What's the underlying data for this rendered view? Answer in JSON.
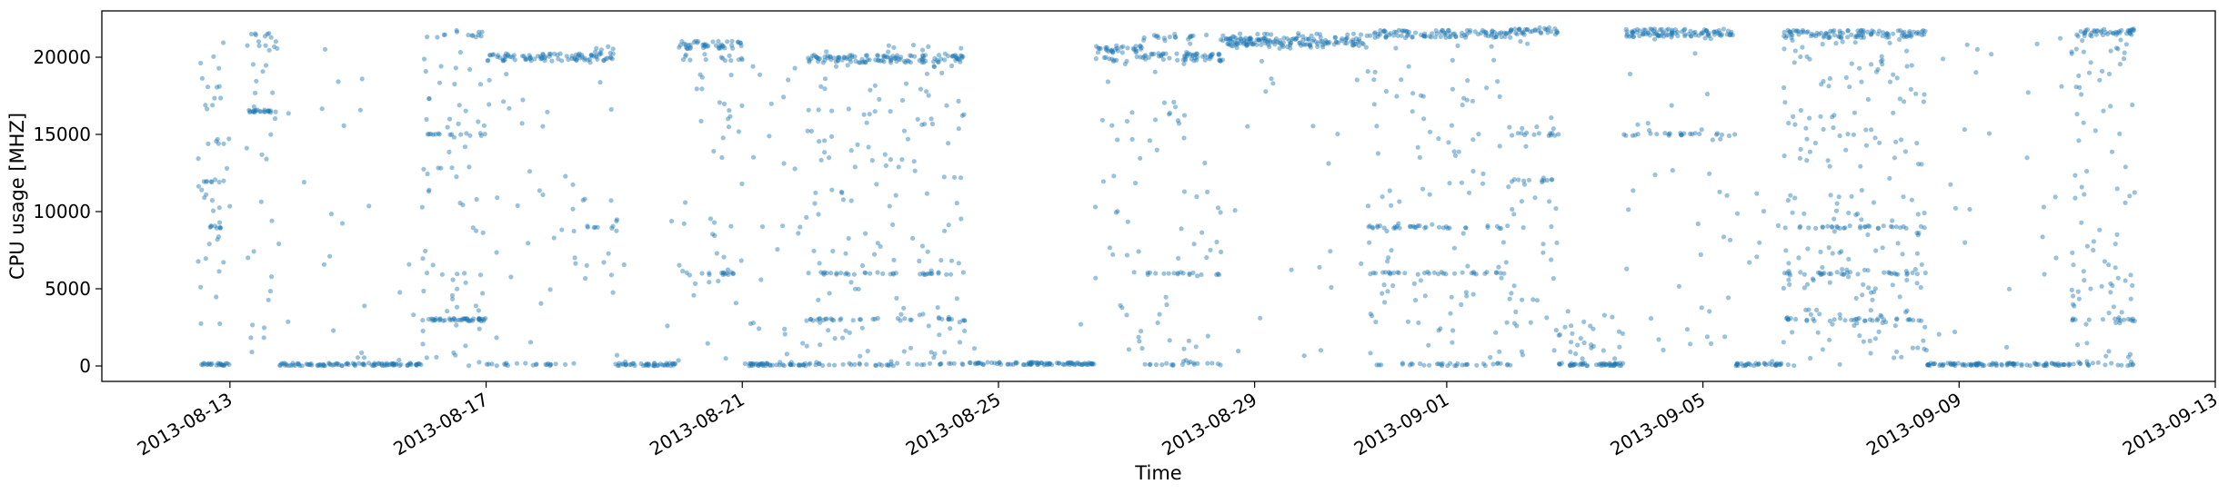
{
  "chart_data": {
    "type": "scatter",
    "xlabel": "Time",
    "ylabel": "CPU usage [MHZ]",
    "xlim": [
      "2013-08-11",
      "2013-09-13"
    ],
    "ylim": [
      -1000,
      23000
    ],
    "x_ticks": [
      "2013-08-13",
      "2013-08-17",
      "2013-08-21",
      "2013-08-25",
      "2013-08-29",
      "2013-09-01",
      "2013-09-05",
      "2013-09-09",
      "2013-09-13"
    ],
    "y_ticks": [
      0,
      5000,
      10000,
      15000,
      20000
    ],
    "y_tick_labels": [
      "0",
      "5000",
      "10000",
      "15000",
      "20000"
    ],
    "grid": false,
    "legend": false,
    "marker_color": "#1f77b4",
    "marker_alpha": 0.45,
    "segments": [
      {
        "start": "2013-08-12 12:00",
        "end": "2013-08-13 00:00",
        "levels": [
          100,
          9000,
          12000
        ],
        "scatter": 45,
        "scatter_max": 21000
      },
      {
        "start": "2013-08-13 06:00",
        "end": "2013-08-13 18:00",
        "levels": [
          16500,
          20800,
          21300
        ],
        "scatter": 25,
        "scatter_max": 21500
      },
      {
        "start": "2013-08-13 18:00",
        "end": "2013-08-16 00:00",
        "levels": [
          100
        ],
        "scatter": 25,
        "scatter_max": 21000
      },
      {
        "start": "2013-08-16 00:00",
        "end": "2013-08-17 00:00",
        "levels": [
          3000,
          15000,
          21500
        ],
        "scatter": 70,
        "scatter_max": 21700
      },
      {
        "start": "2013-08-17 00:00",
        "end": "2013-08-18 12:00",
        "levels": [
          20000,
          100
        ],
        "scatter": 30,
        "scatter_max": 20000
      },
      {
        "start": "2013-08-18 12:00",
        "end": "2013-08-19 00:00",
        "levels": [
          20000,
          20500,
          9000
        ],
        "scatter": 12,
        "scatter_max": 20500
      },
      {
        "start": "2013-08-19 00:00",
        "end": "2013-08-20 00:00",
        "levels": [
          100
        ],
        "scatter": 8,
        "scatter_max": 12000
      },
      {
        "start": "2013-08-20 00:00",
        "end": "2013-08-21 00:00",
        "levels": [
          20800,
          20000,
          6000
        ],
        "scatter": 40,
        "scatter_max": 20800
      },
      {
        "start": "2013-08-21 00:00",
        "end": "2013-08-22 00:00",
        "levels": [
          100
        ],
        "scatter": 25,
        "scatter_max": 19500
      },
      {
        "start": "2013-08-22 00:00",
        "end": "2013-08-24 12:00",
        "levels": [
          19900,
          100,
          3000,
          6000
        ],
        "scatter": 160,
        "scatter_max": 20800
      },
      {
        "start": "2013-08-24 12:00",
        "end": "2013-08-26 12:00",
        "levels": [
          150
        ],
        "scatter": 2,
        "scatter_max": 3000
      },
      {
        "start": "2013-08-26 12:00",
        "end": "2013-08-27 06:00",
        "levels": [
          20500,
          19800
        ],
        "scatter": 30,
        "scatter_max": 20800
      },
      {
        "start": "2013-08-27 06:00",
        "end": "2013-08-28 12:00",
        "levels": [
          20000,
          21300,
          6000,
          100
        ],
        "scatter": 45,
        "scatter_max": 21500
      },
      {
        "start": "2013-08-28 12:00",
        "end": "2013-08-30 18:00",
        "levels": [
          21000,
          20800,
          21300
        ],
        "scatter": 20,
        "scatter_max": 21500
      },
      {
        "start": "2013-08-30 18:00",
        "end": "2013-09-02 00:00",
        "levels": [
          21500,
          100,
          6000,
          9000
        ],
        "scatter": 110,
        "scatter_max": 21800
      },
      {
        "start": "2013-09-02 00:00",
        "end": "2013-09-02 18:00",
        "levels": [
          21700,
          12000,
          15000
        ],
        "scatter": 40,
        "scatter_max": 21800
      },
      {
        "start": "2013-09-02 18:00",
        "end": "2013-09-03 18:00",
        "levels": [
          100
        ],
        "scatter": 30,
        "scatter_max": 4000
      },
      {
        "start": "2013-09-03 18:00",
        "end": "2013-09-05 12:00",
        "levels": [
          21600,
          21400,
          15000
        ],
        "scatter": 35,
        "scatter_max": 21800
      },
      {
        "start": "2013-09-05 12:00",
        "end": "2013-09-06 06:00",
        "levels": [
          100
        ],
        "scatter": 8,
        "scatter_max": 12000
      },
      {
        "start": "2013-09-06 06:00",
        "end": "2013-09-08 12:00",
        "levels": [
          21500,
          9000,
          3000,
          6000
        ],
        "scatter": 210,
        "scatter_max": 21700
      },
      {
        "start": "2013-09-08 12:00",
        "end": "2013-09-10 18:00",
        "levels": [
          100
        ],
        "scatter": 25,
        "scatter_max": 21500
      },
      {
        "start": "2013-09-10 18:00",
        "end": "2013-09-11 18:00",
        "levels": [
          21600,
          100,
          3000
        ],
        "scatter": 90,
        "scatter_max": 21700
      }
    ]
  }
}
